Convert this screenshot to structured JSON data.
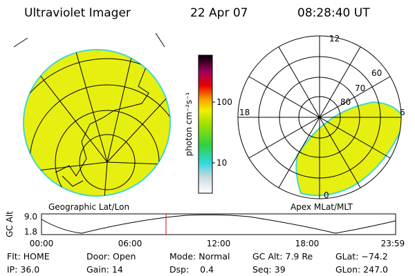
{
  "header": {
    "instrument": "Ultraviolet Imager",
    "date": "22 Apr 07",
    "time": "08:28:40 UT"
  },
  "colorbar": {
    "label": "photon cm⁻²s⁻¹",
    "ticks": [
      "100",
      "10"
    ]
  },
  "left_map": {
    "caption": "Geographic Lat/Lon"
  },
  "right_map": {
    "caption": "Apex MLat/MLT",
    "mlt_labels": [
      "12",
      "18",
      "6",
      "0"
    ],
    "lat_labels": [
      "60",
      "70",
      "80"
    ]
  },
  "altitude_plot": {
    "ylabel": "GC Alt",
    "yticks": [
      "9.0",
      "1.8"
    ],
    "xticks": [
      "00:00",
      "06:00",
      "12:00",
      "18:00",
      "23:59"
    ]
  },
  "info": {
    "rows": [
      [
        "Flt: HOME",
        "Door: Open",
        "Mode: Normal",
        "GC Alt: 7.9 Re",
        "GLat: −74.2"
      ],
      [
        "IP: 36.0",
        "Gain: 14",
        "Dsp:    0.4",
        "Seq: 39",
        "GLon: 247.0"
      ]
    ]
  }
}
